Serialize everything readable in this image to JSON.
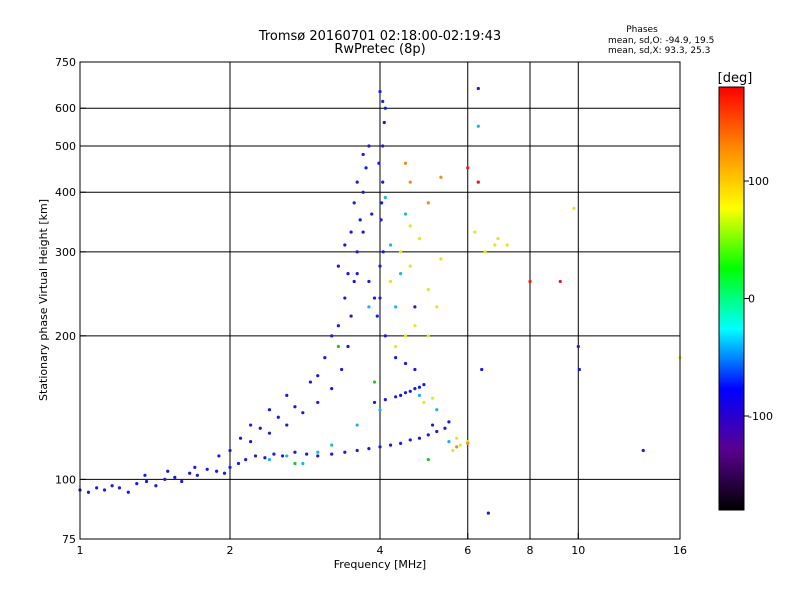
{
  "chart_data": {
    "type": "scatter",
    "title": "Tromsø 20160701 02:18:00-02:19:43",
    "subtitle": "RwPretec (8p)",
    "xlabel": "Frequency [MHz]",
    "ylabel": "Stationary phase Virtual Height [km]",
    "x_scale": "log",
    "y_scale": "log",
    "xlim": [
      1,
      16
    ],
    "ylim": [
      75,
      750
    ],
    "x_ticks": [
      1,
      2,
      4,
      6,
      8,
      10,
      16
    ],
    "y_ticks": [
      75,
      100,
      200,
      300,
      400,
      500,
      600,
      750
    ],
    "grid": true,
    "phase_stats": {
      "heading": "Phases",
      "o_line": "mean, sd,O: -94.9, 19.5",
      "x_line": "mean, sd,X:  93.3, 25.3"
    },
    "colorbar": {
      "label": "[deg]",
      "range": [
        -180,
        180
      ],
      "ticks": [
        100,
        0,
        -100
      ],
      "colors": [
        "#000000",
        "#5a0090",
        "#0000ff",
        "#00ffff",
        "#00ff00",
        "#ffff00",
        "#ff8800",
        "#ff0000"
      ]
    },
    "series": [
      {
        "color": "#1a1adc",
        "points": [
          [
            1.0,
            95
          ],
          [
            1.04,
            94
          ],
          [
            1.08,
            96
          ],
          [
            1.12,
            95
          ],
          [
            1.16,
            97
          ],
          [
            1.2,
            96
          ],
          [
            1.25,
            94
          ],
          [
            1.3,
            98
          ],
          [
            1.36,
            99
          ],
          [
            1.42,
            97
          ],
          [
            1.48,
            100
          ],
          [
            1.55,
            101
          ],
          [
            1.6,
            99
          ],
          [
            1.66,
            103
          ],
          [
            1.72,
            102
          ],
          [
            1.8,
            105
          ],
          [
            1.88,
            104
          ],
          [
            1.95,
            103
          ],
          [
            2.0,
            106
          ],
          [
            2.08,
            108
          ],
          [
            2.15,
            110
          ],
          [
            2.25,
            112
          ],
          [
            2.35,
            111
          ],
          [
            2.45,
            113
          ],
          [
            2.55,
            112
          ],
          [
            2.7,
            114
          ],
          [
            2.85,
            113
          ],
          [
            3.0,
            112
          ],
          [
            3.2,
            113
          ],
          [
            3.4,
            114
          ],
          [
            3.6,
            115
          ],
          [
            3.8,
            116
          ],
          [
            4.0,
            117
          ],
          [
            4.2,
            118
          ],
          [
            4.4,
            119
          ],
          [
            4.6,
            121
          ],
          [
            4.8,
            122
          ],
          [
            5.0,
            124
          ],
          [
            5.2,
            126
          ],
          [
            5.4,
            128
          ],
          [
            2.2,
            120
          ],
          [
            2.4,
            125
          ],
          [
            2.6,
            130
          ],
          [
            2.8,
            138
          ],
          [
            3.0,
            145
          ],
          [
            3.2,
            155
          ],
          [
            3.35,
            170
          ],
          [
            3.45,
            190
          ],
          [
            3.5,
            220
          ],
          [
            3.55,
            260
          ],
          [
            3.6,
            300
          ],
          [
            3.65,
            350
          ],
          [
            3.7,
            400
          ],
          [
            3.75,
            450
          ],
          [
            3.8,
            500
          ],
          [
            3.4,
            240
          ],
          [
            3.5,
            330
          ],
          [
            3.6,
            420
          ],
          [
            3.7,
            480
          ],
          [
            3.3,
            280
          ],
          [
            3.45,
            270
          ],
          [
            3.55,
            380
          ],
          [
            3.9,
            145
          ],
          [
            4.1,
            147
          ],
          [
            4.3,
            149
          ],
          [
            4.5,
            152
          ],
          [
            4.7,
            155
          ],
          [
            4.9,
            158
          ],
          [
            3.95,
            220
          ],
          [
            4.0,
            280
          ],
          [
            4.02,
            350
          ],
          [
            4.05,
            420
          ],
          [
            4.05,
            500
          ],
          [
            4.08,
            560
          ],
          [
            4.05,
            620
          ],
          [
            4.0,
            650
          ],
          [
            4.1,
            600
          ],
          [
            3.98,
            460
          ],
          [
            4.03,
            380
          ],
          [
            4.06,
            300
          ],
          [
            4.0,
            240
          ],
          [
            4.1,
            200
          ],
          [
            4.3,
            180
          ],
          [
            4.5,
            175
          ],
          [
            4.7,
            170
          ],
          [
            2.9,
            160
          ],
          [
            3.1,
            180
          ],
          [
            3.2,
            200
          ],
          [
            2.6,
            150
          ],
          [
            2.4,
            140
          ],
          [
            2.2,
            130
          ],
          [
            2.0,
            115
          ],
          [
            1.9,
            112
          ],
          [
            1.7,
            106
          ],
          [
            1.5,
            104
          ],
          [
            1.35,
            102
          ],
          [
            2.1,
            122
          ],
          [
            2.3,
            128
          ],
          [
            2.5,
            135
          ],
          [
            2.7,
            142
          ],
          [
            3.0,
            165
          ],
          [
            3.3,
            210
          ],
          [
            3.4,
            310
          ],
          [
            3.6,
            270
          ],
          [
            3.7,
            330
          ],
          [
            3.8,
            260
          ],
          [
            3.85,
            360
          ],
          [
            3.9,
            240
          ],
          [
            4.4,
            150
          ],
          [
            4.6,
            153
          ],
          [
            4.8,
            156
          ],
          [
            5.1,
            130
          ],
          [
            5.5,
            132
          ],
          [
            6.3,
            660
          ],
          [
            6.4,
            170
          ],
          [
            10.0,
            190
          ],
          [
            10.05,
            170
          ],
          [
            13.5,
            115
          ],
          [
            6.6,
            85
          ],
          [
            4.7,
            230
          ]
        ]
      },
      {
        "color": "#1eb4e6",
        "points": [
          [
            2.4,
            110
          ],
          [
            2.6,
            112
          ],
          [
            2.8,
            108
          ],
          [
            3.0,
            114
          ],
          [
            3.2,
            118
          ],
          [
            3.6,
            130
          ],
          [
            3.8,
            230
          ],
          [
            4.2,
            310
          ],
          [
            4.4,
            270
          ],
          [
            4.8,
            150
          ],
          [
            5.2,
            140
          ],
          [
            5.5,
            120
          ],
          [
            4.0,
            140
          ],
          [
            4.5,
            360
          ],
          [
            6.3,
            550
          ],
          [
            4.1,
            390
          ],
          [
            4.3,
            230
          ]
        ]
      },
      {
        "color": "#e6e61e",
        "points": [
          [
            4.2,
            260
          ],
          [
            4.4,
            300
          ],
          [
            4.6,
            280
          ],
          [
            4.8,
            320
          ],
          [
            5.0,
            250
          ],
          [
            5.2,
            230
          ],
          [
            4.5,
            200
          ],
          [
            4.7,
            210
          ],
          [
            5.6,
            115
          ],
          [
            5.8,
            118
          ],
          [
            6.0,
            120
          ],
          [
            5.7,
            122
          ],
          [
            4.9,
            145
          ],
          [
            5.1,
            148
          ],
          [
            4.6,
            340
          ],
          [
            5.3,
            290
          ],
          [
            6.2,
            330
          ],
          [
            6.8,
            310
          ],
          [
            7.2,
            310
          ],
          [
            6.5,
            300
          ],
          [
            4.3,
            190
          ],
          [
            5.0,
            200
          ],
          [
            16.0,
            180
          ],
          [
            9.8,
            370
          ],
          [
            6.9,
            320
          ]
        ]
      },
      {
        "color": "#f08c1e",
        "points": [
          [
            4.6,
            420
          ],
          [
            5.0,
            380
          ],
          [
            5.7,
            117
          ],
          [
            6.0,
            119
          ],
          [
            4.5,
            460
          ],
          [
            6.3,
            420
          ],
          [
            5.3,
            430
          ]
        ]
      },
      {
        "color": "#e61e1e",
        "points": [
          [
            8.0,
            260
          ],
          [
            9.2,
            260
          ],
          [
            6.0,
            450
          ],
          [
            6.3,
            420
          ]
        ]
      },
      {
        "color": "#1ec81e",
        "points": [
          [
            2.7,
            108
          ],
          [
            3.9,
            160
          ],
          [
            5.0,
            110
          ],
          [
            3.3,
            190
          ]
        ]
      }
    ]
  }
}
